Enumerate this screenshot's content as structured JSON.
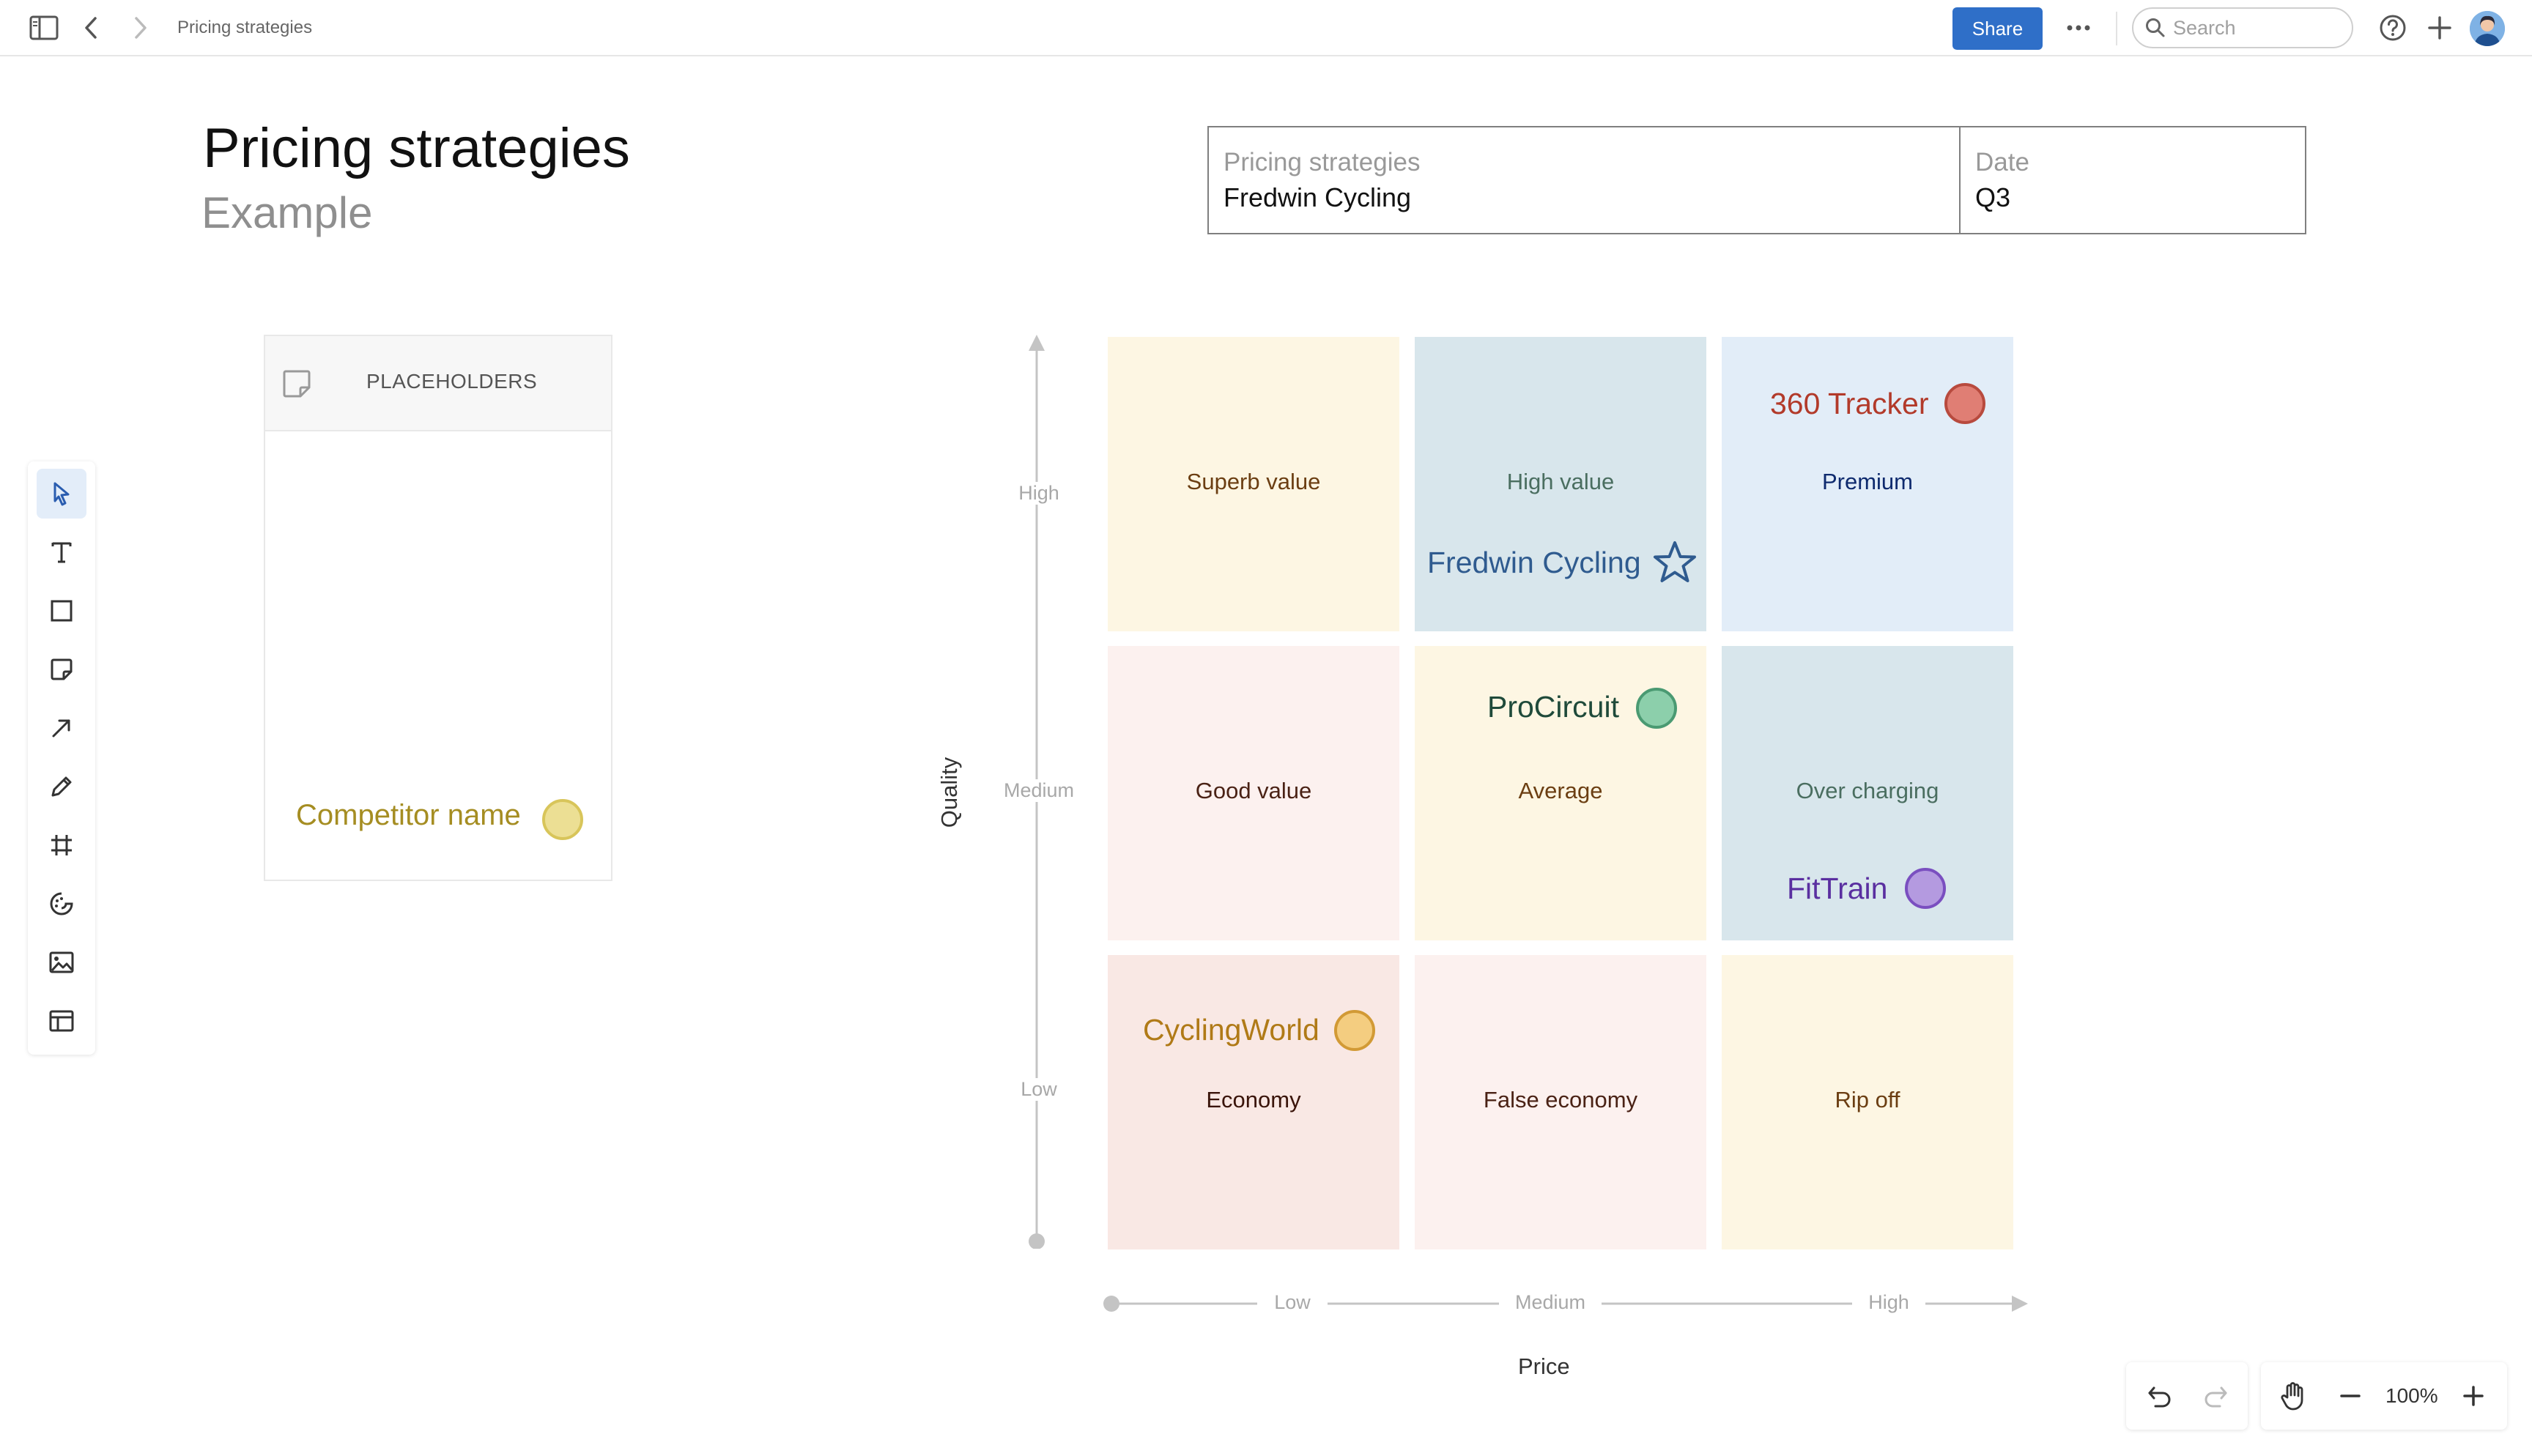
{
  "topbar": {
    "breadcrumb": "Pricing strategies",
    "share_label": "Share",
    "search_placeholder": "Search",
    "icons": [
      "sidebar-toggle-icon",
      "chevron-left-icon",
      "chevron-right-icon",
      "more-icon",
      "search-icon",
      "help-icon",
      "plus-icon"
    ]
  },
  "document": {
    "title": "Pricing strategies",
    "subtitle": "Example"
  },
  "info_table": {
    "col1_label": "Pricing strategies",
    "col1_value": "Fredwin Cycling",
    "col2_label": "Date",
    "col2_value": "Q3"
  },
  "placeholders": {
    "header": "PLACEHOLDERS",
    "competitor_label": "Competitor name",
    "competitor_color": "#ead98a"
  },
  "toolbar": {
    "tools": [
      "select",
      "text",
      "shape",
      "sticky-note",
      "arrow",
      "pen",
      "frame",
      "stamp",
      "image",
      "template"
    ],
    "active": "select"
  },
  "matrix": {
    "quality_axis": {
      "title": "Quality",
      "ticks": [
        "High",
        "Medium",
        "Low"
      ]
    },
    "price_axis": {
      "title": "Price",
      "ticks": [
        "Low",
        "Medium",
        "High"
      ]
    },
    "cells": [
      [
        "Superb value",
        "High value",
        "Premium"
      ],
      [
        "Good value",
        "Average",
        "Over charging"
      ],
      [
        "Economy",
        "False economy",
        "Rip off"
      ]
    ],
    "cell_colors": [
      [
        "#fdf6e3",
        "#d8e6ec",
        "#e2edf8"
      ],
      [
        "#fcf1ef",
        "#fdf6e3",
        "#d8e6ec"
      ],
      [
        "#f9e8e4",
        "#fcf1ef",
        "#fdf6e3"
      ]
    ],
    "competitors": [
      {
        "name": "Fredwin Cycling",
        "cell": [
          0,
          1
        ],
        "shape": "star",
        "color": "#2f5b8f"
      },
      {
        "name": "360 Tracker",
        "cell": [
          0,
          2
        ],
        "shape": "circle",
        "color": "#b23a2a"
      },
      {
        "name": "ProCircuit",
        "cell": [
          1,
          1
        ],
        "shape": "circle",
        "color": "#1f4a3a"
      },
      {
        "name": "FitTrain",
        "cell": [
          1,
          2
        ],
        "shape": "circle",
        "color": "#5a2fa0"
      },
      {
        "name": "CyclingWorld",
        "cell": [
          2,
          0
        ],
        "shape": "circle",
        "color": "#b07a17"
      }
    ]
  },
  "zoom": {
    "level": "100%"
  }
}
